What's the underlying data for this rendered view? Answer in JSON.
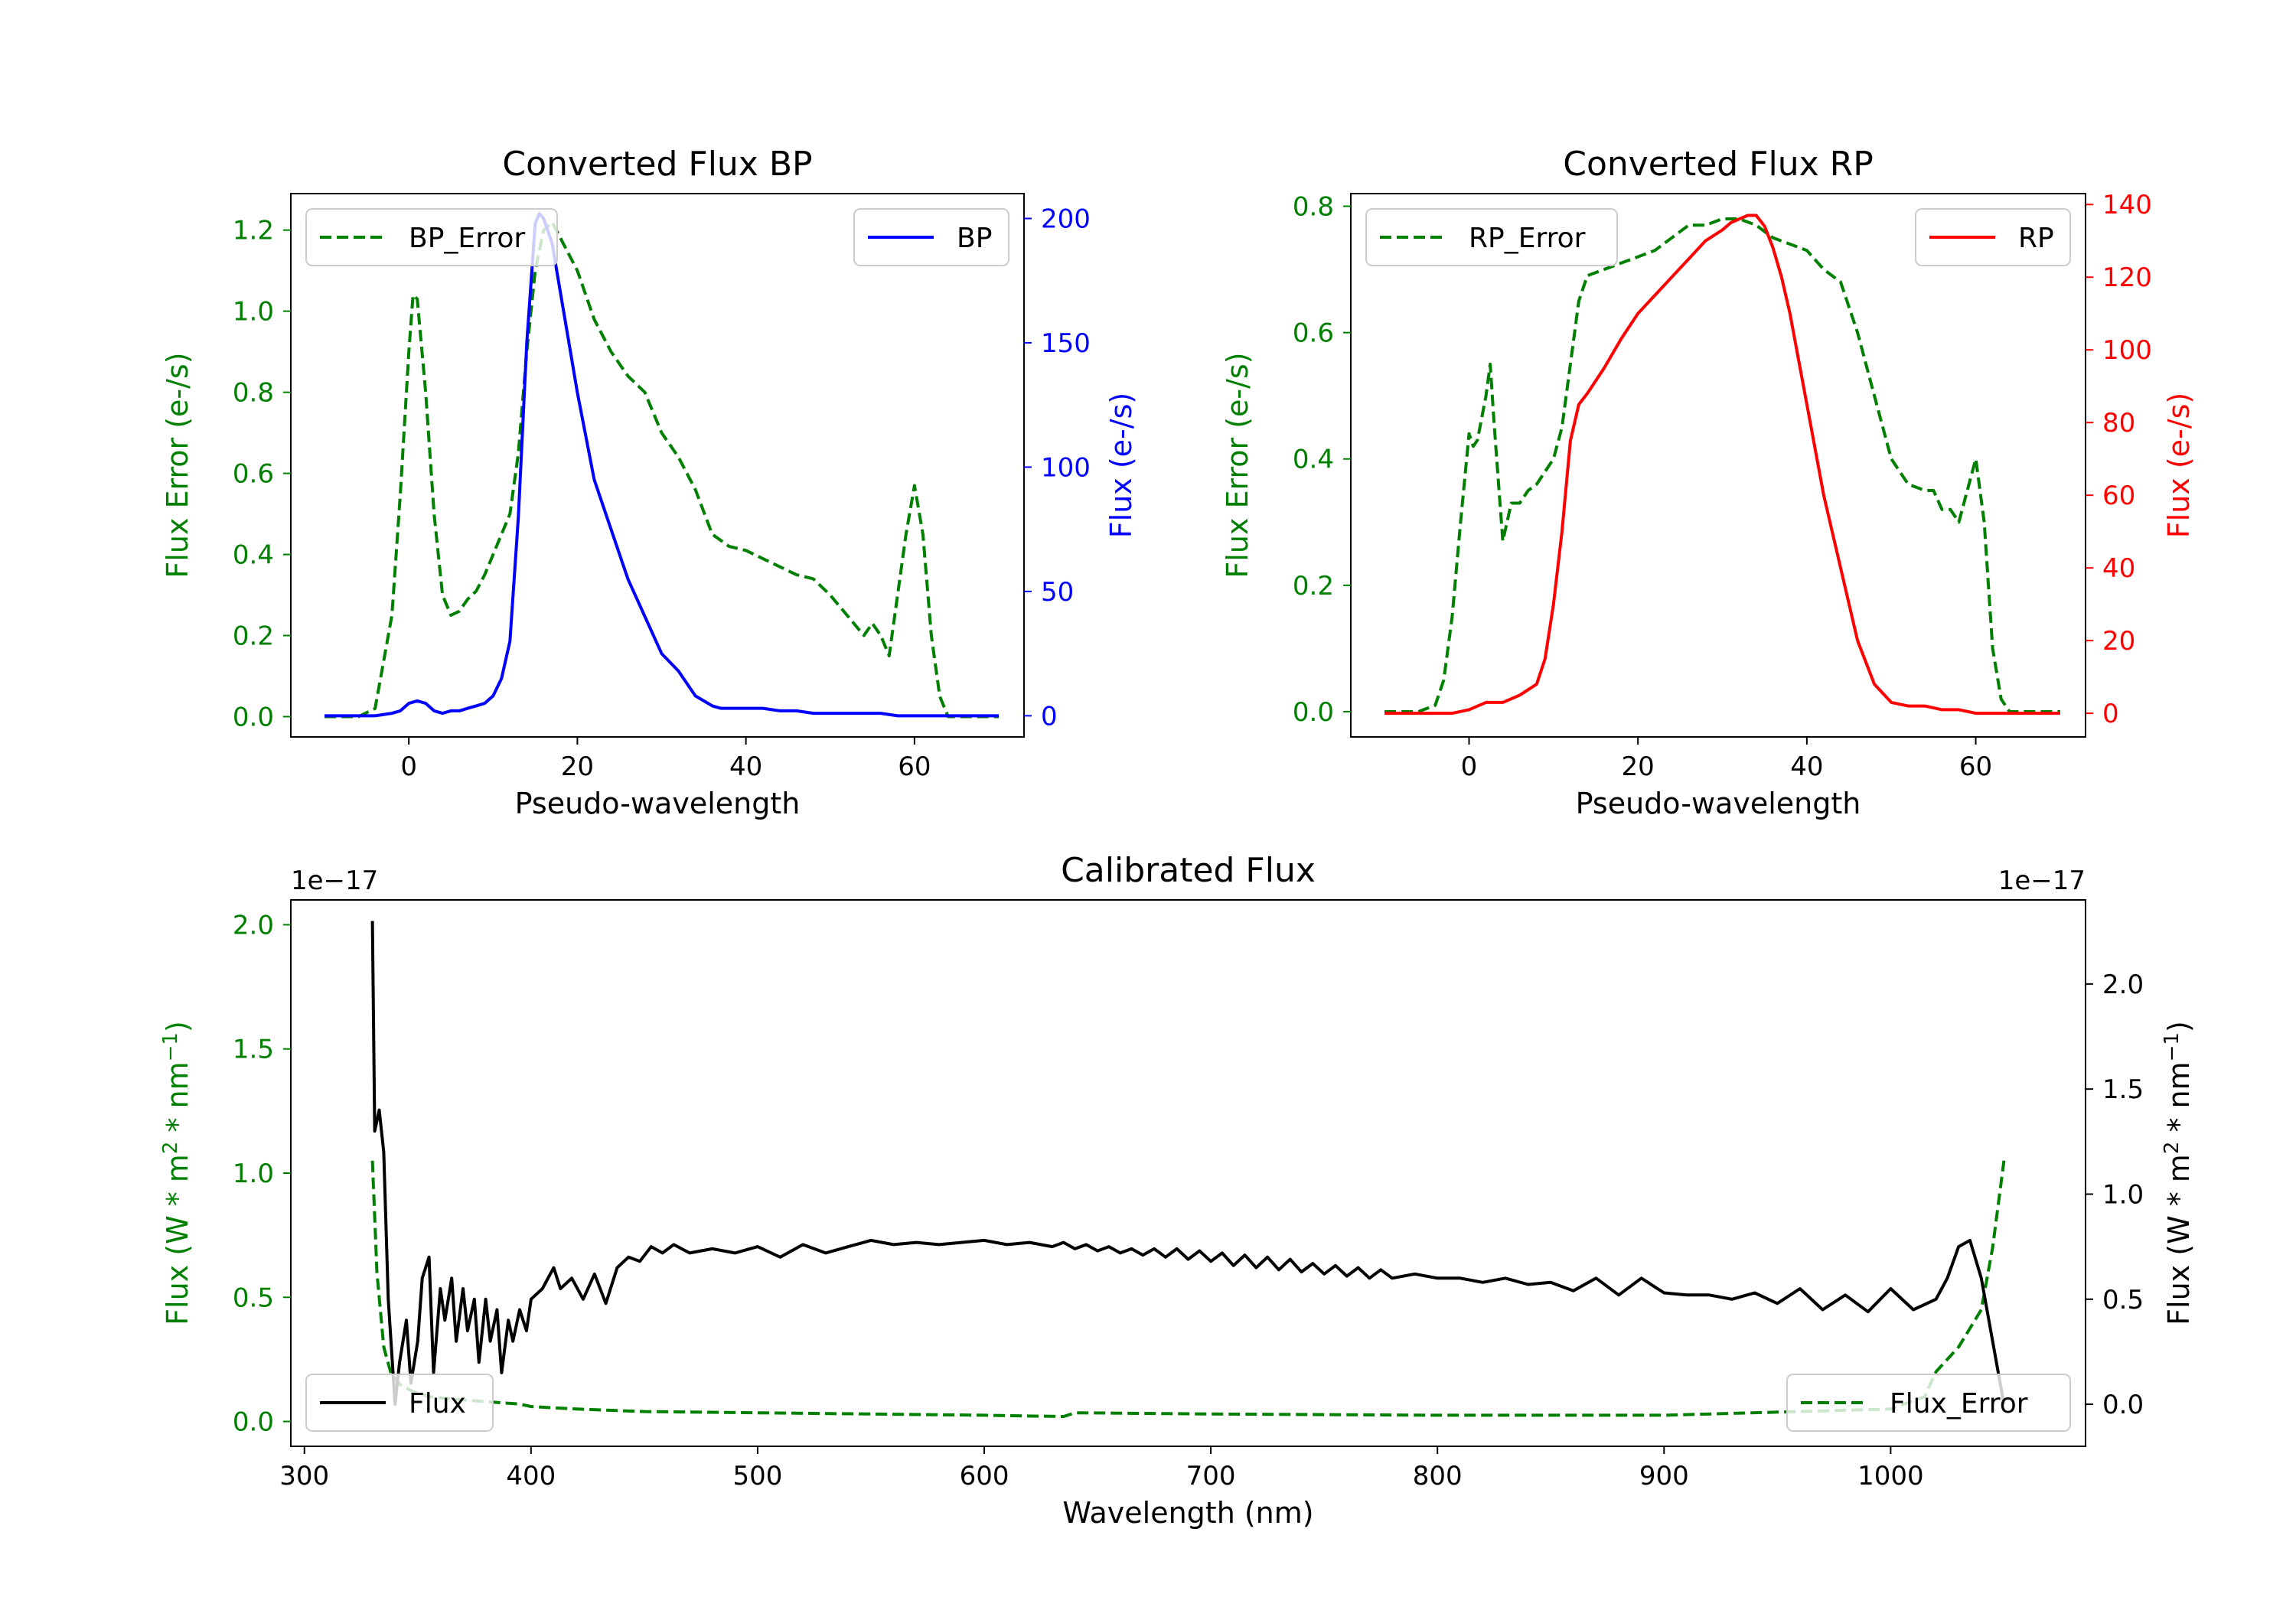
{
  "colors": {
    "green": "#008000",
    "blue": "#0000ff",
    "red": "#ff0000",
    "black": "#000000"
  },
  "chart_data": [
    {
      "id": "bp",
      "type": "line",
      "title": "Converted Flux BP",
      "xlabel": "Pseudo-wavelength",
      "ylabel_left": "Flux Error (e-/s)",
      "ylabel_right": "Flux (e-/s)",
      "xlim": [
        -14,
        73
      ],
      "ylim_left": [
        -0.05,
        1.29
      ],
      "ylim_right": [
        -8.5,
        210
      ],
      "xticks": [
        0,
        20,
        40,
        60
      ],
      "yticks_left": [
        0.0,
        0.2,
        0.4,
        0.6,
        0.8,
        1.0,
        1.2
      ],
      "yticks_right": [
        0,
        50,
        100,
        150,
        200
      ],
      "series": [
        {
          "name": "BP_Error",
          "axis": "left",
          "color": "#008000",
          "dash": true,
          "x": [
            -10,
            -6,
            -4,
            -2,
            -1,
            0,
            0.5,
            1,
            2,
            3,
            4,
            5,
            6,
            7,
            8,
            9,
            10,
            11,
            12,
            13,
            14,
            15,
            16,
            17,
            18,
            20,
            22,
            24,
            26,
            28,
            30,
            32,
            34,
            36,
            38,
            40,
            42,
            44,
            46,
            48,
            50,
            52,
            54,
            55,
            56,
            57,
            58,
            59,
            60,
            61,
            62,
            63,
            64,
            70
          ],
          "y": [
            0,
            0,
            0.02,
            0.25,
            0.55,
            0.9,
            1.04,
            1.03,
            0.8,
            0.5,
            0.3,
            0.25,
            0.26,
            0.29,
            0.31,
            0.35,
            0.4,
            0.45,
            0.5,
            0.65,
            0.9,
            1.1,
            1.2,
            1.22,
            1.18,
            1.1,
            0.98,
            0.9,
            0.84,
            0.8,
            0.7,
            0.64,
            0.56,
            0.45,
            0.42,
            0.41,
            0.39,
            0.37,
            0.35,
            0.34,
            0.3,
            0.25,
            0.2,
            0.23,
            0.2,
            0.15,
            0.3,
            0.45,
            0.57,
            0.45,
            0.2,
            0.05,
            0.0,
            0.0
          ]
        },
        {
          "name": "BP",
          "axis": "right",
          "color": "#0000ff",
          "dash": false,
          "x": [
            -10,
            -6,
            -4,
            -2,
            -1,
            0,
            1,
            2,
            3,
            4,
            5,
            6,
            7,
            8,
            9,
            10,
            11,
            12,
            13,
            14,
            15,
            15.5,
            16,
            17,
            18,
            19,
            20,
            22,
            24,
            26,
            28,
            30,
            32,
            34,
            36,
            37,
            38,
            40,
            42,
            44,
            46,
            48,
            50,
            52,
            54,
            56,
            58,
            60,
            62,
            66,
            70
          ],
          "y": [
            0,
            0,
            0,
            1,
            2,
            5,
            6,
            5,
            2,
            1,
            2,
            2,
            3,
            4,
            5,
            8,
            15,
            30,
            80,
            150,
            198,
            202,
            200,
            190,
            170,
            150,
            130,
            95,
            75,
            55,
            40,
            25,
            18,
            8,
            4,
            3,
            3,
            3,
            3,
            2,
            2,
            1,
            1,
            1,
            1,
            1,
            0,
            0,
            0,
            0,
            0
          ]
        }
      ],
      "legends": [
        {
          "label": "BP_Error",
          "position": "upper-left"
        },
        {
          "label": "BP",
          "position": "upper-right"
        }
      ]
    },
    {
      "id": "rp",
      "type": "line",
      "title": "Converted Flux RP",
      "xlabel": "Pseudo-wavelength",
      "ylabel_left": "Flux Error (e-/s)",
      "ylabel_right": "Flux (e-/s)",
      "xlim": [
        -14,
        73
      ],
      "ylim_left": [
        -0.04,
        0.82
      ],
      "ylim_right": [
        -6.5,
        143
      ],
      "xticks": [
        0,
        20,
        40,
        60
      ],
      "yticks_left": [
        0.0,
        0.2,
        0.4,
        0.6,
        0.8
      ],
      "yticks_right": [
        0,
        20,
        40,
        60,
        80,
        100,
        120,
        140
      ],
      "series": [
        {
          "name": "RP_Error",
          "axis": "left",
          "color": "#008000",
          "dash": true,
          "x": [
            -10,
            -6,
            -4,
            -3,
            -2,
            -1,
            0,
            0.5,
            1,
            2,
            2.5,
            3,
            4,
            5,
            6,
            7,
            8,
            9,
            10,
            11,
            12,
            13,
            14,
            16,
            18,
            20,
            22,
            24,
            26,
            28,
            30,
            32,
            34,
            36,
            38,
            40,
            42,
            44,
            46,
            48,
            50,
            52,
            54,
            55,
            56,
            57,
            58,
            59,
            60,
            61,
            62,
            63,
            64,
            66,
            70
          ],
          "y": [
            0,
            0,
            0.01,
            0.05,
            0.15,
            0.3,
            0.44,
            0.42,
            0.43,
            0.5,
            0.55,
            0.45,
            0.27,
            0.33,
            0.33,
            0.35,
            0.36,
            0.38,
            0.4,
            0.45,
            0.55,
            0.65,
            0.69,
            0.7,
            0.71,
            0.72,
            0.73,
            0.75,
            0.77,
            0.77,
            0.78,
            0.78,
            0.77,
            0.75,
            0.74,
            0.73,
            0.7,
            0.68,
            0.6,
            0.5,
            0.4,
            0.36,
            0.35,
            0.35,
            0.32,
            0.32,
            0.3,
            0.35,
            0.4,
            0.3,
            0.1,
            0.02,
            0.0,
            0.0,
            0.0
          ]
        },
        {
          "name": "RP",
          "axis": "right",
          "color": "#ff0000",
          "dash": false,
          "x": [
            -10,
            -5,
            -2,
            0,
            2,
            4,
            6,
            8,
            9,
            10,
            11,
            12,
            13,
            14,
            16,
            18,
            20,
            22,
            24,
            26,
            28,
            30,
            31,
            32,
            33,
            34,
            35,
            36,
            37,
            38,
            40,
            42,
            44,
            46,
            48,
            50,
            52,
            54,
            56,
            58,
            60,
            62,
            66,
            70
          ],
          "y": [
            0,
            0,
            0,
            1,
            3,
            3,
            5,
            8,
            15,
            30,
            50,
            75,
            85,
            88,
            95,
            103,
            110,
            115,
            120,
            125,
            130,
            133,
            135,
            136,
            137,
            137,
            134,
            128,
            120,
            110,
            85,
            60,
            40,
            20,
            8,
            3,
            2,
            2,
            1,
            1,
            0,
            0,
            0,
            0
          ]
        }
      ],
      "legends": [
        {
          "label": "RP_Error",
          "position": "upper-left"
        },
        {
          "label": "RP",
          "position": "upper-right"
        }
      ]
    },
    {
      "id": "cal",
      "type": "line",
      "title": "Calibrated Flux",
      "xlabel": "Wavelength (nm)",
      "ylabel_left": "Flux (W * m$^2$ * nm$^{-1}$)",
      "ylabel_right": "Flux (W * m$^2$ * nm$^{-1}$)",
      "ylabel_display": {
        "prefix": "Flux (W * m",
        "sq": "2",
        "mid": " * nm",
        "sup": "−1",
        "suffix": ")"
      },
      "offset_left": "1e−17",
      "offset_right": "1e−17",
      "xlim": [
        294,
        1086
      ],
      "ylim_left": [
        -0.1,
        2.1
      ],
      "ylim_right": [
        -0.2,
        2.4
      ],
      "xticks": [
        300,
        400,
        500,
        600,
        700,
        800,
        900,
        1000
      ],
      "yticks_left": [
        0.0,
        0.5,
        1.0,
        1.5,
        2.0
      ],
      "yticks_right": [
        0.0,
        0.5,
        1.0,
        1.5,
        2.0
      ],
      "series": [
        {
          "name": "Flux_Error",
          "axis": "left",
          "color": "#008000",
          "dash": true,
          "x": [
            330,
            332,
            335,
            338,
            342,
            348,
            355,
            365,
            380,
            395,
            400,
            420,
            450,
            500,
            550,
            600,
            635,
            640,
            700,
            800,
            900,
            1000,
            1015,
            1020,
            1030,
            1040,
            1045,
            1050
          ],
          "y": [
            1.05,
            0.6,
            0.3,
            0.2,
            0.15,
            0.12,
            0.1,
            0.09,
            0.08,
            0.07,
            0.06,
            0.05,
            0.04,
            0.035,
            0.03,
            0.025,
            0.02,
            0.035,
            0.03,
            0.025,
            0.025,
            0.05,
            0.1,
            0.2,
            0.3,
            0.45,
            0.7,
            1.05
          ]
        },
        {
          "name": "Flux",
          "axis": "right",
          "color": "#000000",
          "dash": false,
          "x": [
            330,
            331,
            333,
            335,
            337,
            340,
            342,
            345,
            347,
            350,
            352,
            355,
            357,
            360,
            362,
            365,
            367,
            370,
            372,
            375,
            377,
            380,
            382,
            385,
            387,
            390,
            392,
            395,
            398,
            400,
            405,
            410,
            413,
            418,
            423,
            428,
            433,
            438,
            443,
            448,
            453,
            458,
            463,
            470,
            480,
            490,
            500,
            510,
            520,
            530,
            540,
            550,
            560,
            570,
            580,
            590,
            600,
            610,
            620,
            630,
            635,
            640,
            645,
            650,
            655,
            660,
            665,
            670,
            675,
            680,
            685,
            690,
            695,
            700,
            705,
            710,
            715,
            720,
            725,
            730,
            735,
            740,
            745,
            750,
            755,
            760,
            765,
            770,
            775,
            780,
            790,
            800,
            810,
            820,
            830,
            840,
            850,
            860,
            870,
            880,
            890,
            900,
            910,
            920,
            930,
            940,
            950,
            960,
            970,
            980,
            990,
            1000,
            1010,
            1020,
            1025,
            1030,
            1035,
            1040,
            1045,
            1050
          ],
          "y": [
            2.3,
            1.3,
            1.4,
            1.2,
            0.5,
            0.0,
            0.2,
            0.4,
            0.1,
            0.3,
            0.6,
            0.7,
            0.15,
            0.55,
            0.4,
            0.6,
            0.3,
            0.55,
            0.35,
            0.5,
            0.2,
            0.5,
            0.3,
            0.45,
            0.15,
            0.4,
            0.3,
            0.45,
            0.35,
            0.5,
            0.55,
            0.65,
            0.55,
            0.6,
            0.5,
            0.62,
            0.48,
            0.65,
            0.7,
            0.68,
            0.75,
            0.72,
            0.76,
            0.72,
            0.74,
            0.72,
            0.75,
            0.7,
            0.76,
            0.72,
            0.75,
            0.78,
            0.76,
            0.77,
            0.76,
            0.77,
            0.78,
            0.76,
            0.77,
            0.75,
            0.77,
            0.74,
            0.76,
            0.73,
            0.75,
            0.72,
            0.74,
            0.71,
            0.74,
            0.7,
            0.74,
            0.69,
            0.73,
            0.68,
            0.72,
            0.66,
            0.71,
            0.65,
            0.7,
            0.64,
            0.69,
            0.63,
            0.67,
            0.62,
            0.66,
            0.61,
            0.65,
            0.6,
            0.64,
            0.6,
            0.62,
            0.6,
            0.6,
            0.58,
            0.6,
            0.57,
            0.58,
            0.54,
            0.6,
            0.52,
            0.6,
            0.53,
            0.52,
            0.52,
            0.5,
            0.53,
            0.48,
            0.55,
            0.45,
            0.52,
            0.44,
            0.55,
            0.45,
            0.5,
            0.6,
            0.75,
            0.78,
            0.6,
            0.3,
            0.0
          ]
        }
      ],
      "legends": [
        {
          "label": "Flux",
          "position": "lower-left"
        },
        {
          "label": "Flux_Error",
          "position": "lower-right"
        }
      ]
    }
  ]
}
